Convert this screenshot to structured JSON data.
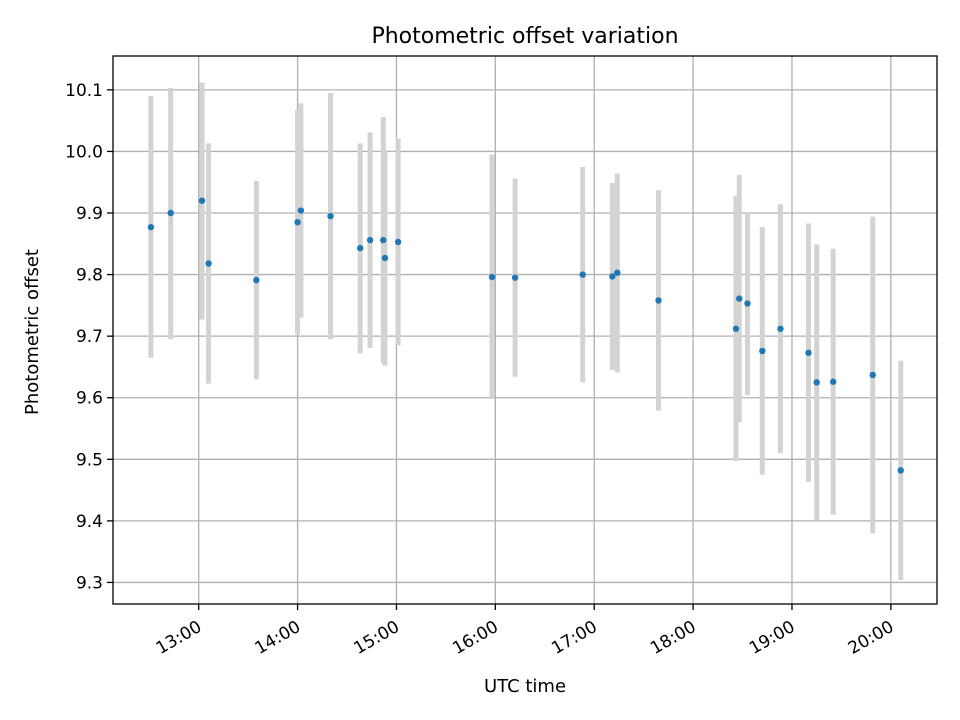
{
  "chart_data": {
    "type": "scatter",
    "title": "Photometric offset variation",
    "xlabel": "UTC time",
    "ylabel": "Photometric offset",
    "x_axis_type": "time",
    "xlim": [
      "12:08",
      "20:28"
    ],
    "ylim": [
      9.265,
      10.155
    ],
    "x_ticks": [
      "13:00",
      "14:00",
      "15:00",
      "16:00",
      "17:00",
      "18:00",
      "19:00",
      "20:00"
    ],
    "y_ticks": [
      9.3,
      9.4,
      9.5,
      9.6,
      9.7,
      9.8,
      9.9,
      10.0,
      10.1
    ],
    "y_tick_labels": [
      "9.3",
      "9.4",
      "9.5",
      "9.6",
      "9.7",
      "9.8",
      "9.9",
      "10.0",
      "10.1"
    ],
    "grid": true,
    "legend": "none",
    "colors": {
      "point": "#1f77b4",
      "errorbar": "#d3d3d3",
      "grid": "#b0b0b0",
      "axis": "#000000"
    },
    "series": [
      {
        "points": [
          {
            "x": "12:31",
            "y": 9.877,
            "yerr_low": 9.665,
            "yerr_high": 10.09
          },
          {
            "x": "12:43",
            "y": 9.9,
            "yerr_low": 9.695,
            "yerr_high": 10.103
          },
          {
            "x": "13:02",
            "y": 9.92,
            "yerr_low": 9.727,
            "yerr_high": 10.112
          },
          {
            "x": "13:06",
            "y": 9.818,
            "yerr_low": 9.623,
            "yerr_high": 10.013
          },
          {
            "x": "13:35",
            "y": 9.791,
            "yerr_low": 9.63,
            "yerr_high": 9.952
          },
          {
            "x": "14:00",
            "y": 9.885,
            "yerr_low": 9.703,
            "yerr_high": 10.068
          },
          {
            "x": "14:02",
            "y": 9.904,
            "yerr_low": 9.73,
            "yerr_high": 10.078
          },
          {
            "x": "14:20",
            "y": 9.895,
            "yerr_low": 9.695,
            "yerr_high": 10.095
          },
          {
            "x": "14:38",
            "y": 9.843,
            "yerr_low": 9.672,
            "yerr_high": 10.013
          },
          {
            "x": "14:44",
            "y": 9.856,
            "yerr_low": 9.681,
            "yerr_high": 10.031
          },
          {
            "x": "14:52",
            "y": 9.856,
            "yerr_low": 9.656,
            "yerr_high": 10.056
          },
          {
            "x": "14:53",
            "y": 9.827,
            "yerr_low": 9.652,
            "yerr_high": 10.002
          },
          {
            "x": "15:01",
            "y": 9.853,
            "yerr_low": 9.685,
            "yerr_high": 10.021
          },
          {
            "x": "15:58",
            "y": 9.796,
            "yerr_low": 9.598,
            "yerr_high": 9.995
          },
          {
            "x": "16:12",
            "y": 9.795,
            "yerr_low": 9.634,
            "yerr_high": 9.956
          },
          {
            "x": "16:53",
            "y": 9.8,
            "yerr_low": 9.625,
            "yerr_high": 9.975
          },
          {
            "x": "17:11",
            "y": 9.797,
            "yerr_low": 9.645,
            "yerr_high": 9.949
          },
          {
            "x": "17:14",
            "y": 9.803,
            "yerr_low": 9.641,
            "yerr_high": 9.964
          },
          {
            "x": "17:39",
            "y": 9.758,
            "yerr_low": 9.579,
            "yerr_high": 9.937
          },
          {
            "x": "18:26",
            "y": 9.712,
            "yerr_low": 9.497,
            "yerr_high": 9.928
          },
          {
            "x": "18:28",
            "y": 9.761,
            "yerr_low": 9.56,
            "yerr_high": 9.962
          },
          {
            "x": "18:33",
            "y": 9.753,
            "yerr_low": 9.604,
            "yerr_high": 9.901
          },
          {
            "x": "18:42",
            "y": 9.676,
            "yerr_low": 9.475,
            "yerr_high": 9.877
          },
          {
            "x": "18:53",
            "y": 9.712,
            "yerr_low": 9.51,
            "yerr_high": 9.914
          },
          {
            "x": "19:10",
            "y": 9.673,
            "yerr_low": 9.463,
            "yerr_high": 9.883
          },
          {
            "x": "19:15",
            "y": 9.625,
            "yerr_low": 9.401,
            "yerr_high": 9.849
          },
          {
            "x": "19:25",
            "y": 9.626,
            "yerr_low": 9.41,
            "yerr_high": 9.842
          },
          {
            "x": "19:49",
            "y": 9.637,
            "yerr_low": 9.38,
            "yerr_high": 9.894
          },
          {
            "x": "20:06",
            "y": 9.482,
            "yerr_low": 9.304,
            "yerr_high": 9.66
          }
        ]
      }
    ]
  }
}
